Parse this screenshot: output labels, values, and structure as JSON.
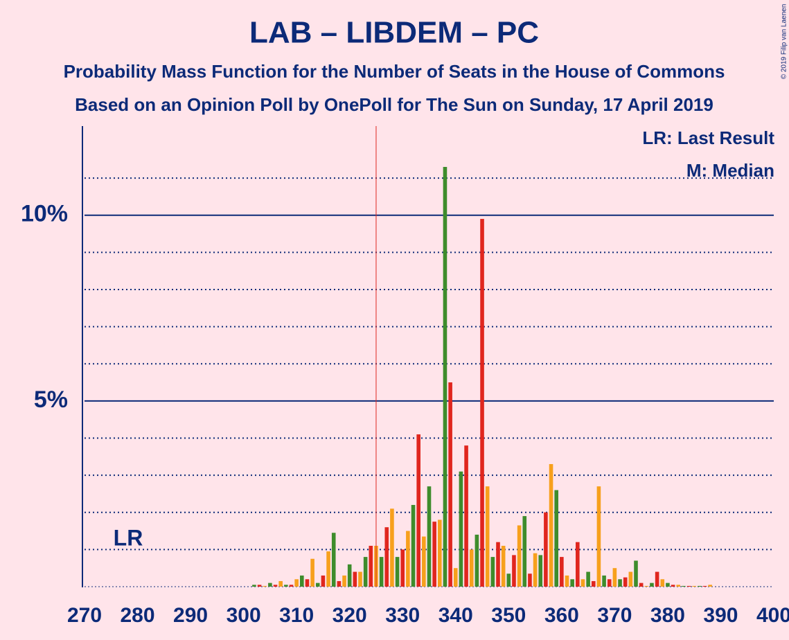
{
  "chart_data": {
    "type": "bar",
    "title": "LAB – LIBDEM – PC",
    "subtitle": "Probability Mass Function for the Number of Seats in the House of Commons",
    "subtitle2": "Based on an Opinion Poll by OnePoll for The Sun on Sunday, 17 April 2019",
    "copyright": "© 2019 Filip van Laenen",
    "legend": [
      "LR: Last Result",
      "M: Median"
    ],
    "last_result_label": "LR",
    "last_result": 325,
    "colors": [
      "#e0261e",
      "#f7a01c",
      "#3e8c2c"
    ],
    "x": [
      270,
      271,
      272,
      273,
      274,
      275,
      276,
      277,
      278,
      279,
      280,
      281,
      282,
      283,
      284,
      285,
      286,
      287,
      288,
      289,
      290,
      291,
      292,
      293,
      294,
      295,
      296,
      297,
      298,
      299,
      300,
      301,
      302,
      303,
      304,
      305,
      306,
      307,
      308,
      309,
      310,
      311,
      312,
      313,
      314,
      315,
      316,
      317,
      318,
      319,
      320,
      321,
      322,
      323,
      324,
      325,
      326,
      327,
      328,
      329,
      330,
      331,
      332,
      333,
      334,
      335,
      336,
      337,
      338,
      339,
      340,
      341,
      342,
      343,
      344,
      345,
      346,
      347,
      348,
      349,
      350,
      351,
      352,
      353,
      354,
      355,
      356,
      357,
      358,
      359,
      360,
      361,
      362,
      363,
      364,
      365,
      366,
      367,
      368,
      369,
      370,
      371,
      372,
      373,
      374,
      375,
      376,
      377,
      378,
      379,
      380,
      381,
      382,
      383,
      384,
      385,
      386,
      387,
      388,
      389,
      390,
      391,
      392,
      393,
      394,
      395,
      396,
      397,
      398,
      399,
      400
    ],
    "values": [
      0,
      0,
      0,
      0,
      0,
      0,
      0,
      0,
      0,
      0,
      0,
      0,
      0,
      0,
      0,
      0,
      0,
      0,
      0,
      0,
      0,
      0,
      0,
      0,
      0,
      0,
      0,
      0,
      0,
      0,
      0,
      0,
      0.05,
      0.05,
      0.02,
      0.1,
      0.05,
      0.15,
      0.05,
      0.05,
      0.2,
      0.3,
      0.2,
      0.75,
      0.1,
      0.3,
      0.95,
      1.45,
      0.15,
      0.3,
      0.6,
      0.4,
      0.4,
      0.8,
      1.1,
      1.1,
      0.8,
      1.6,
      2.1,
      0.8,
      1.0,
      1.5,
      2.2,
      4.1,
      1.35,
      2.7,
      1.75,
      1.8,
      11.3,
      5.5,
      0.5,
      3.1,
      3.8,
      1.0,
      1.4,
      9.9,
      2.7,
      0.8,
      1.2,
      1.1,
      0.35,
      0.85,
      1.65,
      1.9,
      0.35,
      0.9,
      0.85,
      2.0,
      3.3,
      2.6,
      0.8,
      0.3,
      0.2,
      1.2,
      0.2,
      0.4,
      0.15,
      2.7,
      0.3,
      0.2,
      0.5,
      0.2,
      0.25,
      0.4,
      0.7,
      0.1,
      0.02,
      0.1,
      0.4,
      0.2,
      0.1,
      0.05,
      0.05,
      0.02,
      0.02,
      0.02,
      0.02,
      0.02,
      0.05,
      0,
      0,
      0,
      0,
      0,
      0,
      0,
      0,
      0,
      0,
      0,
      0
    ],
    "xlim": [
      270,
      400
    ],
    "xticks": [
      270,
      280,
      290,
      300,
      310,
      320,
      330,
      340,
      350,
      360,
      370,
      380,
      390,
      400
    ],
    "ylim": [
      0,
      12.4
    ],
    "yticks": [
      0,
      {
        "value": 5,
        "label": "5%"
      },
      {
        "value": 10,
        "label": "10%"
      }
    ],
    "minor_yticks": [
      1,
      2,
      3,
      4,
      6,
      7,
      8,
      9,
      11
    ]
  }
}
